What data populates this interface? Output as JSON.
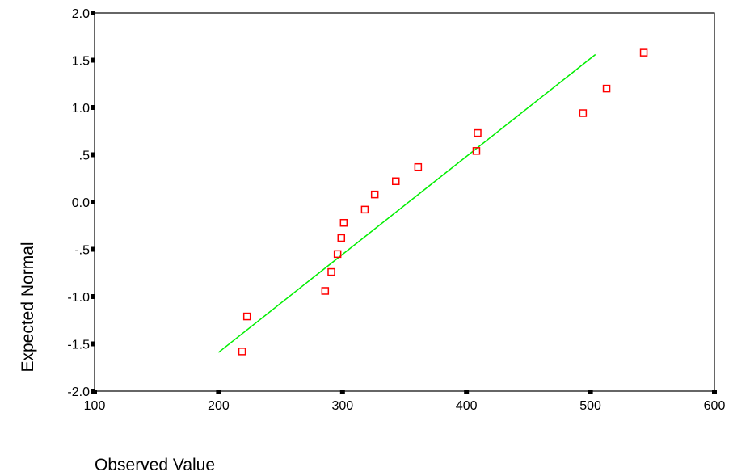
{
  "chart_data": {
    "type": "scatter",
    "xlabel": "Observed Value",
    "ylabel": "Expected Normal",
    "xlim": [
      100,
      600
    ],
    "ylim": [
      -2.0,
      2.0
    ],
    "x_ticks": [
      100,
      200,
      300,
      400,
      500,
      600
    ],
    "x_tick_labels": [
      "100",
      "200",
      "300",
      "400",
      "500",
      "600"
    ],
    "y_ticks": [
      2.0,
      1.5,
      1.0,
      0.5,
      0.0,
      -0.5,
      -1.0,
      -1.5,
      -2.0
    ],
    "y_tick_labels": [
      "2.0",
      "1.5",
      "1.0",
      ".5",
      "0.0",
      "-.5",
      "-1.0",
      "-1.5",
      "-2.0"
    ],
    "grid": false,
    "series": [
      {
        "kind": "points",
        "marker": "open-square",
        "color": "#ff0000",
        "x": [
          219,
          223,
          286,
          291,
          296,
          299,
          301,
          318,
          326,
          343,
          361,
          408,
          409,
          494,
          513,
          543
        ],
        "y": [
          -1.58,
          -1.21,
          -0.94,
          -0.74,
          -0.55,
          -0.38,
          -0.22,
          -0.08,
          0.08,
          0.22,
          0.37,
          0.54,
          0.73,
          0.94,
          1.2,
          1.58
        ]
      },
      {
        "kind": "reference-line",
        "color": "#00ee00",
        "x": [
          200,
          504
        ],
        "y": [
          -1.59,
          1.56
        ]
      }
    ]
  }
}
